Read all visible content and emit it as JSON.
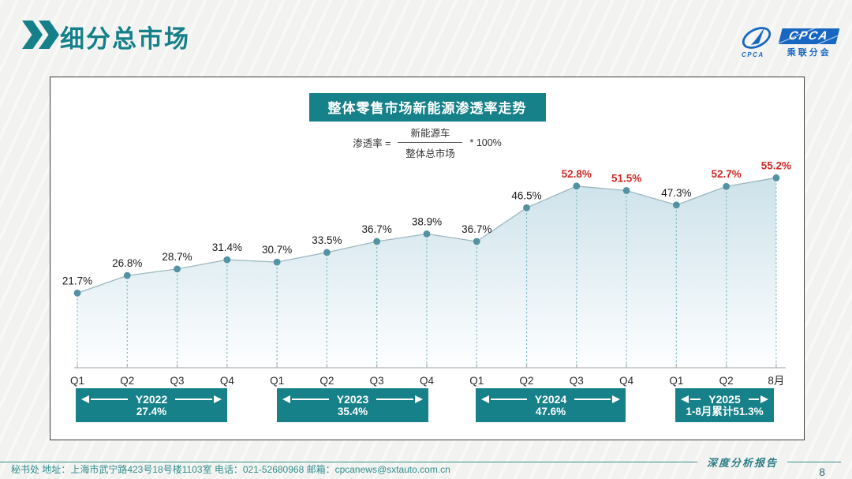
{
  "header": {
    "title": "细分总市场"
  },
  "logo": {
    "brand": "CPCA",
    "name_cn": "乘联分会",
    "mark_caption": "CPCA"
  },
  "panel": {
    "title": "整体零售市场新能源渗透率走势",
    "formula": {
      "lhs": "渗透率 =",
      "numerator": "新能源车",
      "denominator": "整体总市场",
      "rhs": "* 100%"
    }
  },
  "chart_data": {
    "type": "area",
    "title": "整体零售市场新能源渗透率走势",
    "unit": "%",
    "x_labels": [
      "Q1",
      "Q2",
      "Q3",
      "Q4",
      "Q1",
      "Q2",
      "Q3",
      "Q4",
      "Q1",
      "Q2",
      "Q3",
      "Q4",
      "Q1",
      "Q2",
      "8月"
    ],
    "values": [
      21.7,
      26.8,
      28.7,
      31.4,
      30.7,
      33.5,
      36.7,
      38.9,
      36.7,
      46.5,
      52.8,
      51.5,
      47.3,
      52.7,
      55.2
    ],
    "red_label_indices": [
      10,
      11,
      13,
      14
    ],
    "ylim": [
      0,
      60
    ],
    "grid": false,
    "legend": "none",
    "year_ranges": [
      {
        "label": "Y2022",
        "value": "27.4%"
      },
      {
        "label": "Y2023",
        "value": "35.4%"
      },
      {
        "label": "Y2024",
        "value": "47.6%"
      },
      {
        "label": "Y2025",
        "value": "1-8月累计51.3%"
      }
    ]
  },
  "colors": {
    "teal": "#17818a",
    "red": "#cf2a27",
    "blue": "#1767c2",
    "dot": "#5292a2",
    "line": "#9db7bf",
    "dash": "#74b4bf",
    "axis": "#b3b3b3",
    "label": "#1a1a1a",
    "area_top": "#cde2ea",
    "area_bottom": "#fdfeff"
  },
  "footer": {
    "report_label": "深度分析报告",
    "page": "8",
    "contact": "秘书处   地址：上海市武宁路423号18号楼1103室  电话：021-52680968   邮箱：cpcanews@sxtauto.com.cn"
  }
}
